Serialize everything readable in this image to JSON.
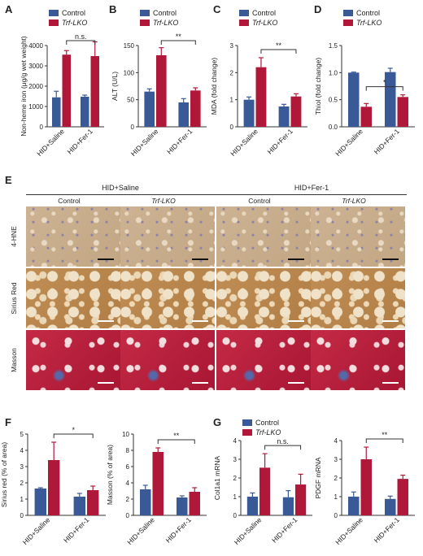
{
  "colors": {
    "control": "#3a5a97",
    "trf": "#b0183a",
    "axis": "#333333"
  },
  "legend": {
    "control": "Control",
    "trf": "Trf-LKO"
  },
  "panel_letters": [
    "A",
    "B",
    "C",
    "D",
    "E",
    "F",
    "G"
  ],
  "chart_data": [
    {
      "panel": "A",
      "type": "bar",
      "groups": [
        "HID+Saline",
        "HID+Fer-1"
      ],
      "ylabel": "Non-heme iron (μg/g wet weight)",
      "ylim": [
        0,
        4000
      ],
      "yticks": [
        0,
        1000,
        2000,
        3000,
        4000
      ],
      "series": [
        {
          "name": "Control",
          "values": [
            1450,
            1480
          ],
          "err": [
            300,
            80
          ]
        },
        {
          "name": "Trf-LKO",
          "values": [
            3550,
            3480
          ],
          "err": [
            200,
            700
          ]
        }
      ],
      "annotations": [
        {
          "text": "n.s.",
          "from": [
            0,
            1
          ],
          "to": [
            1,
            1
          ]
        }
      ]
    },
    {
      "panel": "B",
      "type": "bar",
      "groups": [
        "HID+Saline",
        "HID+Fer-1"
      ],
      "ylabel": "ALT (U/L)",
      "ylim": [
        0,
        150
      ],
      "yticks": [
        0,
        50,
        100,
        150
      ],
      "series": [
        {
          "name": "Control",
          "values": [
            65,
            45
          ],
          "err": [
            5,
            7
          ]
        },
        {
          "name": "Trf-LKO",
          "values": [
            132,
            67
          ],
          "err": [
            14,
            5
          ]
        }
      ],
      "annotations": [
        {
          "text": "**",
          "from": [
            0,
            1
          ],
          "to": [
            1,
            1
          ]
        }
      ]
    },
    {
      "panel": "C",
      "type": "bar",
      "groups": [
        "HID+Saline",
        "HID+Fer-1"
      ],
      "ylabel": "MDA (fold change)",
      "ylim": [
        0,
        3
      ],
      "yticks": [
        0,
        1,
        2,
        3
      ],
      "series": [
        {
          "name": "Control",
          "values": [
            1.0,
            0.75
          ],
          "err": [
            0.1,
            0.08
          ]
        },
        {
          "name": "Trf-LKO",
          "values": [
            2.2,
            1.12
          ],
          "err": [
            0.35,
            0.1
          ]
        }
      ],
      "annotations": [
        {
          "text": "**",
          "from": [
            0,
            1
          ],
          "to": [
            1,
            1
          ]
        }
      ]
    },
    {
      "panel": "D",
      "type": "bar",
      "groups": [
        "HID+Saline",
        "HID+Fer-1"
      ],
      "ylabel": "Thiol (fold change)",
      "ylim": [
        0,
        1.5
      ],
      "yticks": [
        0,
        0.5,
        1.0,
        1.5
      ],
      "series": [
        {
          "name": "Control",
          "values": [
            1.0,
            1.01
          ],
          "err": [
            0.01,
            0.07
          ]
        },
        {
          "name": "Trf-LKO",
          "values": [
            0.37,
            0.55
          ],
          "err": [
            0.06,
            0.04
          ]
        }
      ],
      "annotations": [
        {
          "text": "*",
          "from": [
            0,
            1
          ],
          "to": [
            1,
            1
          ]
        }
      ]
    },
    {
      "panel": "F1",
      "type": "bar",
      "groups": [
        "HID+Saline",
        "HID+Fer-1"
      ],
      "ylabel": "Sirius red (% of area)",
      "ylim": [
        0,
        5
      ],
      "yticks": [
        0,
        1,
        2,
        3,
        4,
        5
      ],
      "series": [
        {
          "name": "Control",
          "values": [
            1.65,
            1.15
          ],
          "err": [
            0.05,
            0.2
          ]
        },
        {
          "name": "Trf-LKO",
          "values": [
            3.4,
            1.55
          ],
          "err": [
            1.1,
            0.25
          ]
        }
      ],
      "annotations": [
        {
          "text": "*",
          "from": [
            0,
            1
          ],
          "to": [
            1,
            1
          ]
        }
      ]
    },
    {
      "panel": "F2",
      "type": "bar",
      "groups": [
        "HID+Saline",
        "HID+Fer-1"
      ],
      "ylabel": "Masson (% of area)",
      "ylim": [
        0,
        10
      ],
      "yticks": [
        0,
        2,
        4,
        6,
        8,
        10
      ],
      "series": [
        {
          "name": "Control",
          "values": [
            3.2,
            2.2
          ],
          "err": [
            0.5,
            0.2
          ]
        },
        {
          "name": "Trf-LKO",
          "values": [
            7.8,
            2.9
          ],
          "err": [
            0.5,
            0.5
          ]
        }
      ],
      "annotations": [
        {
          "text": "**",
          "from": [
            0,
            1
          ],
          "to": [
            1,
            1
          ]
        }
      ]
    },
    {
      "panel": "G1",
      "type": "bar",
      "groups": [
        "HID+Saline",
        "HID+Fer-1"
      ],
      "ylabel": "Col1a1 mRNA",
      "ylim": [
        0,
        4
      ],
      "yticks": [
        0,
        1,
        2,
        3,
        4
      ],
      "series": [
        {
          "name": "Control",
          "values": [
            1.0,
            0.97
          ],
          "err": [
            0.2,
            0.35
          ]
        },
        {
          "name": "Trf-LKO",
          "values": [
            2.55,
            1.65
          ],
          "err": [
            0.75,
            0.55
          ]
        }
      ],
      "annotations": [
        {
          "text": "n.s.",
          "from": [
            0,
            1
          ],
          "to": [
            1,
            1
          ]
        }
      ]
    },
    {
      "panel": "G2",
      "type": "bar",
      "groups": [
        "HID+Saline",
        "HID+Fer-1"
      ],
      "ylabel": "PDGF mRNA",
      "ylim": [
        0,
        4
      ],
      "yticks": [
        0,
        1,
        2,
        3,
        4
      ],
      "series": [
        {
          "name": "Control",
          "values": [
            1.0,
            0.88
          ],
          "err": [
            0.25,
            0.15
          ]
        },
        {
          "name": "Trf-LKO",
          "values": [
            3.0,
            1.95
          ],
          "err": [
            0.65,
            0.2
          ]
        }
      ],
      "annotations": [
        {
          "text": "**",
          "from": [
            0,
            1
          ],
          "to": [
            1,
            1
          ]
        }
      ]
    }
  ],
  "histology": {
    "groups": [
      "HID+Saline",
      "HID+Fer-1"
    ],
    "columns": [
      "Control",
      "Trf-LKO",
      "Control",
      "Trf-LKO"
    ],
    "rows": [
      {
        "label": "4-HNE",
        "color": "#c9ad8a"
      },
      {
        "label": "Sirius Red",
        "color": "#b8864f"
      },
      {
        "label": "Masson",
        "color": "#b91c3a"
      }
    ]
  }
}
